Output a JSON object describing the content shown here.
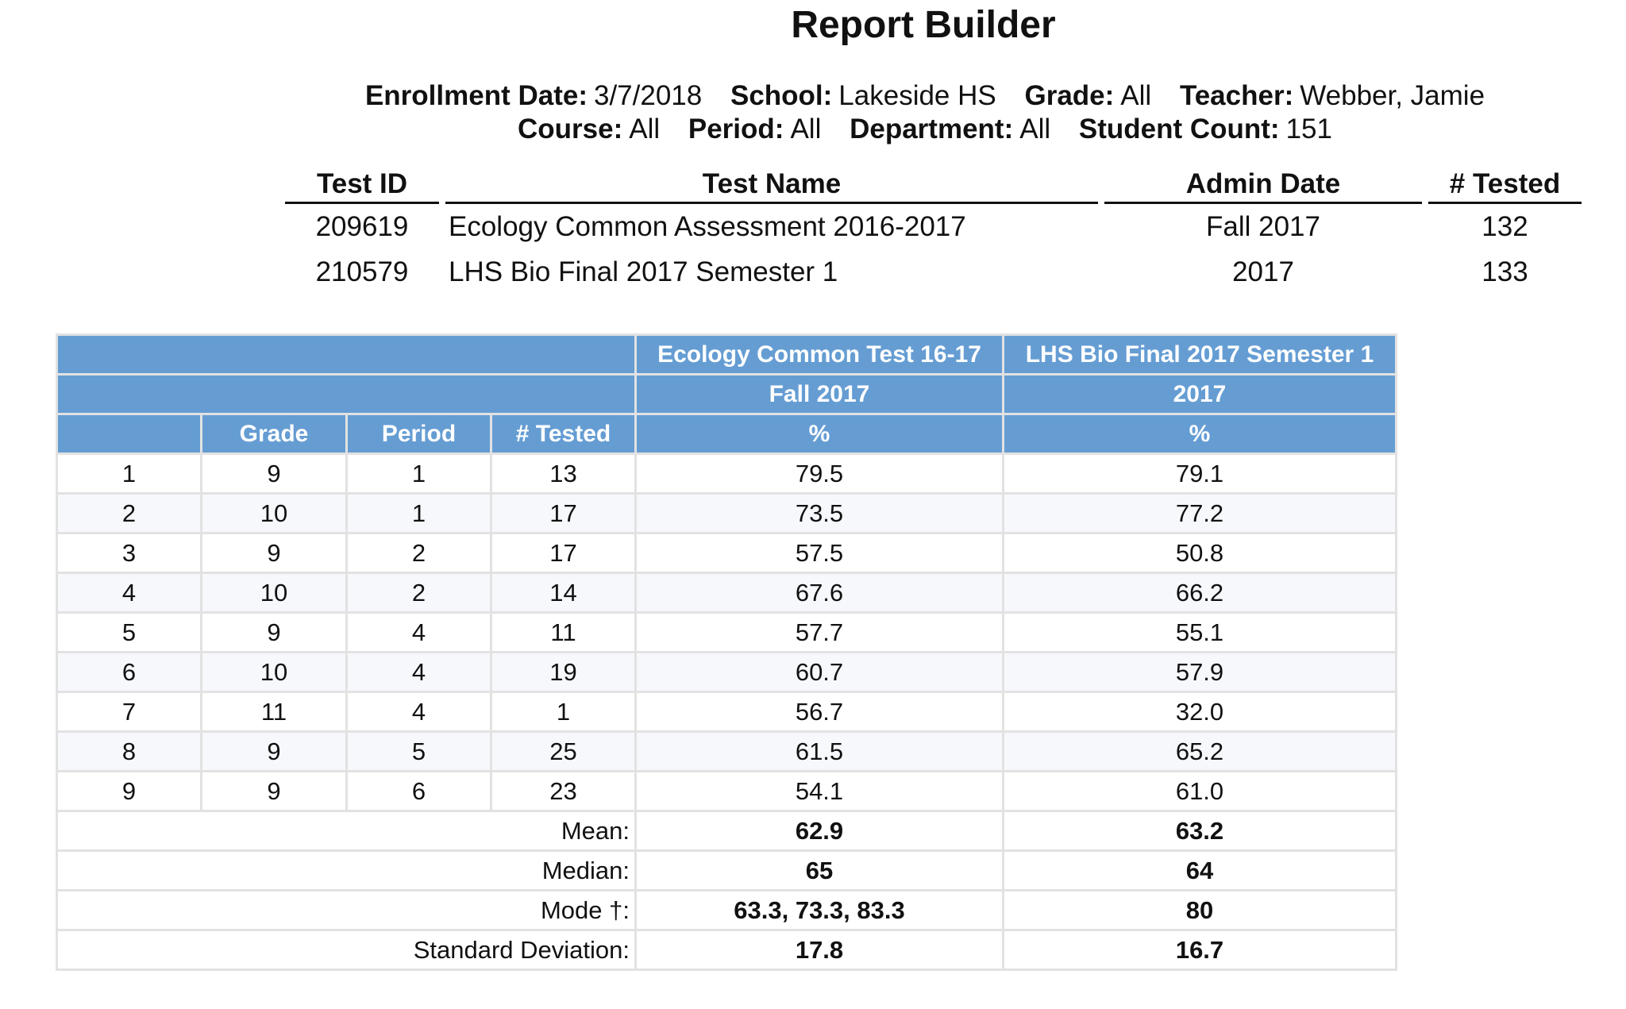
{
  "title": "Report Builder",
  "filters": {
    "enrollment_date_label": "Enrollment Date:",
    "enrollment_date": "3/7/2018",
    "school_label": "School:",
    "school": "Lakeside HS",
    "grade_label": "Grade:",
    "grade": "All",
    "teacher_label": "Teacher:",
    "teacher": "Webber, Jamie",
    "course_label": "Course:",
    "course": "All",
    "period_label": "Period:",
    "period": "All",
    "department_label": "Department:",
    "department": "All",
    "student_count_label": "Student Count:",
    "student_count": "151"
  },
  "tests": {
    "headers": [
      "Test ID",
      "Test Name",
      "Admin Date",
      "# Tested"
    ],
    "rows": [
      [
        "209619",
        "Ecology Common Assessment 2016-2017",
        "Fall 2017",
        "132"
      ],
      [
        "210579",
        "LHS Bio Final 2017 Semester 1",
        "2017",
        "133"
      ]
    ]
  },
  "grid": {
    "test_names": [
      "Ecology Common Test 16-17",
      "LHS Bio Final 2017 Semester 1"
    ],
    "admin_dates": [
      "Fall 2017",
      "2017"
    ],
    "columns": [
      "",
      "Grade",
      "Period",
      "# Tested",
      "%",
      "%"
    ],
    "rows": [
      [
        "1",
        "9",
        "1",
        "13",
        "79.5",
        "79.1"
      ],
      [
        "2",
        "10",
        "1",
        "17",
        "73.5",
        "77.2"
      ],
      [
        "3",
        "9",
        "2",
        "17",
        "57.5",
        "50.8"
      ],
      [
        "4",
        "10",
        "2",
        "14",
        "67.6",
        "66.2"
      ],
      [
        "5",
        "9",
        "4",
        "11",
        "57.7",
        "55.1"
      ],
      [
        "6",
        "10",
        "4",
        "19",
        "60.7",
        "57.9"
      ],
      [
        "7",
        "11",
        "4",
        "1",
        "56.7",
        "32.0"
      ],
      [
        "8",
        "9",
        "5",
        "25",
        "61.5",
        "65.2"
      ],
      [
        "9",
        "9",
        "6",
        "23",
        "54.1",
        "61.0"
      ]
    ],
    "stats": [
      [
        "Mean:",
        "62.9",
        "63.2"
      ],
      [
        "Median:",
        "65",
        "64"
      ],
      [
        "Mode †:",
        "63.3, 73.3, 83.3",
        "80"
      ],
      [
        "Standard Deviation:",
        "17.8",
        "16.7"
      ]
    ]
  },
  "colors": {
    "header_bg": "#659dd3",
    "border": "#e2e2e2",
    "alt_row": "#f6f8fc"
  }
}
